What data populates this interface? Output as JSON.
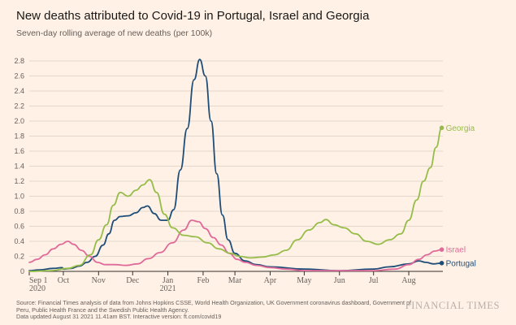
{
  "header": {
    "title": "New deaths attributed to Covid-19 in Portugal, Israel and Georgia",
    "subtitle": "Seven-day rolling average of new deaths (per 100k)"
  },
  "footer": {
    "source_lines": [
      "Source: Financial Times analysis of data from Johns Hopkins CSSE, World Health Organization, UK Government coronavirus dashboard, Government of",
      "Peru, Public Health France and the Swedish Public Health Agency.",
      "Data updated August 31 2021 11.41am BST. Interactive version: ft.com/covid19"
    ],
    "brand": "FINANCIAL TIMES"
  },
  "colors": {
    "background": "#fff1e5",
    "portugal": "#1f4e79",
    "israel": "#e06b9a",
    "georgia": "#96bd4a",
    "grid": "#e3d6ca",
    "axis": "#33302e"
  },
  "chart_data": {
    "type": "line",
    "ylim": [
      0,
      2.8
    ],
    "yticks": [
      "0",
      "0.2",
      "0.4",
      "0.6",
      "0.8",
      "1.0",
      "1.2",
      "1.4",
      "1.6",
      "1.8",
      "2.0",
      "2.2",
      "2.4",
      "2.6",
      "2.8"
    ],
    "xlim": [
      "2020-09-01",
      "2021-08-31"
    ],
    "xticks": [
      {
        "label": "Sep 1",
        "sub": "2020",
        "date": "2020-09-01"
      },
      {
        "label": "Oct",
        "sub": "",
        "date": "2020-10-01"
      },
      {
        "label": "Nov",
        "sub": "",
        "date": "2020-11-01"
      },
      {
        "label": "Dec",
        "sub": "",
        "date": "2020-12-01"
      },
      {
        "label": "Jan",
        "sub": "2021",
        "date": "2021-01-01"
      },
      {
        "label": "Feb",
        "sub": "",
        "date": "2021-02-01"
      },
      {
        "label": "Mar",
        "sub": "",
        "date": "2021-03-01"
      },
      {
        "label": "Apr",
        "sub": "",
        "date": "2021-04-01"
      },
      {
        "label": "May",
        "sub": "",
        "date": "2021-05-01"
      },
      {
        "label": "Jun",
        "sub": "",
        "date": "2021-06-01"
      },
      {
        "label": "Jul",
        "sub": "",
        "date": "2021-07-01"
      },
      {
        "label": "Aug",
        "sub": "",
        "date": "2021-08-01"
      }
    ],
    "grid": true,
    "series": [
      {
        "name": "Portugal",
        "color": "#1f4e79",
        "points": [
          [
            "2020-09-01",
            0.01
          ],
          [
            "2020-09-10",
            0.02
          ],
          [
            "2020-09-22",
            0.04
          ],
          [
            "2020-09-30",
            0.05
          ],
          [
            "2020-10-01",
            0.03
          ],
          [
            "2020-10-08",
            0.04
          ],
          [
            "2020-10-15",
            0.07
          ],
          [
            "2020-10-22",
            0.12
          ],
          [
            "2020-10-29",
            0.2
          ],
          [
            "2020-11-05",
            0.35
          ],
          [
            "2020-11-10",
            0.5
          ],
          [
            "2020-11-15",
            0.68
          ],
          [
            "2020-11-20",
            0.73
          ],
          [
            "2020-11-27",
            0.74
          ],
          [
            "2020-12-04",
            0.78
          ],
          [
            "2020-12-10",
            0.85
          ],
          [
            "2020-12-14",
            0.87
          ],
          [
            "2020-12-20",
            0.77
          ],
          [
            "2020-12-26",
            0.68
          ],
          [
            "2021-01-01",
            0.68
          ],
          [
            "2021-01-06",
            0.82
          ],
          [
            "2021-01-12",
            1.35
          ],
          [
            "2021-01-18",
            1.9
          ],
          [
            "2021-01-24",
            2.55
          ],
          [
            "2021-01-29",
            2.82
          ],
          [
            "2021-02-03",
            2.6
          ],
          [
            "2021-02-08",
            2.0
          ],
          [
            "2021-02-13",
            1.3
          ],
          [
            "2021-02-18",
            0.75
          ],
          [
            "2021-02-23",
            0.42
          ],
          [
            "2021-03-01",
            0.24
          ],
          [
            "2021-03-10",
            0.14
          ],
          [
            "2021-03-20",
            0.09
          ],
          [
            "2021-04-01",
            0.06
          ],
          [
            "2021-05-01",
            0.03
          ],
          [
            "2021-06-01",
            0.01
          ],
          [
            "2021-07-01",
            0.03
          ],
          [
            "2021-07-15",
            0.06
          ],
          [
            "2021-08-01",
            0.1
          ],
          [
            "2021-08-10",
            0.14
          ],
          [
            "2021-08-16",
            0.12
          ],
          [
            "2021-08-23",
            0.1
          ],
          [
            "2021-08-30",
            0.11
          ]
        ]
      },
      {
        "name": "Israel",
        "color": "#e06b9a",
        "points": [
          [
            "2020-09-01",
            0.12
          ],
          [
            "2020-09-08",
            0.16
          ],
          [
            "2020-09-15",
            0.22
          ],
          [
            "2020-09-22",
            0.3
          ],
          [
            "2020-09-29",
            0.36
          ],
          [
            "2020-10-05",
            0.4
          ],
          [
            "2020-10-10",
            0.36
          ],
          [
            "2020-10-17",
            0.28
          ],
          [
            "2020-10-24",
            0.2
          ],
          [
            "2020-10-31",
            0.12
          ],
          [
            "2020-11-07",
            0.09
          ],
          [
            "2020-11-15",
            0.09
          ],
          [
            "2020-11-25",
            0.08
          ],
          [
            "2020-12-05",
            0.1
          ],
          [
            "2020-12-15",
            0.17
          ],
          [
            "2020-12-25",
            0.25
          ],
          [
            "2021-01-05",
            0.38
          ],
          [
            "2021-01-15",
            0.55
          ],
          [
            "2021-01-22",
            0.68
          ],
          [
            "2021-01-28",
            0.66
          ],
          [
            "2021-02-03",
            0.57
          ],
          [
            "2021-02-10",
            0.45
          ],
          [
            "2021-02-17",
            0.35
          ],
          [
            "2021-02-24",
            0.24
          ],
          [
            "2021-03-03",
            0.16
          ],
          [
            "2021-03-10",
            0.12
          ],
          [
            "2021-03-20",
            0.08
          ],
          [
            "2021-04-01",
            0.05
          ],
          [
            "2021-04-15",
            0.03
          ],
          [
            "2021-05-01",
            0.01
          ],
          [
            "2021-06-01",
            0.01
          ],
          [
            "2021-07-01",
            0.01
          ],
          [
            "2021-07-20",
            0.03
          ],
          [
            "2021-08-01",
            0.09
          ],
          [
            "2021-08-10",
            0.16
          ],
          [
            "2021-08-17",
            0.22
          ],
          [
            "2021-08-24",
            0.27
          ],
          [
            "2021-08-30",
            0.29
          ]
        ]
      },
      {
        "name": "Georgia",
        "color": "#96bd4a",
        "points": [
          [
            "2020-09-01",
            0.0
          ],
          [
            "2020-09-20",
            0.01
          ],
          [
            "2020-10-05",
            0.04
          ],
          [
            "2020-10-15",
            0.08
          ],
          [
            "2020-10-25",
            0.22
          ],
          [
            "2020-11-01",
            0.42
          ],
          [
            "2020-11-08",
            0.62
          ],
          [
            "2020-11-14",
            0.88
          ],
          [
            "2020-11-20",
            1.05
          ],
          [
            "2020-11-27",
            1.0
          ],
          [
            "2020-12-04",
            1.08
          ],
          [
            "2020-12-10",
            1.15
          ],
          [
            "2020-12-16",
            1.22
          ],
          [
            "2020-12-22",
            1.05
          ],
          [
            "2020-12-29",
            0.76
          ],
          [
            "2021-01-05",
            0.58
          ],
          [
            "2021-01-15",
            0.48
          ],
          [
            "2021-01-25",
            0.46
          ],
          [
            "2021-02-05",
            0.38
          ],
          [
            "2021-02-15",
            0.3
          ],
          [
            "2021-02-25",
            0.24
          ],
          [
            "2021-03-05",
            0.2
          ],
          [
            "2021-03-15",
            0.18
          ],
          [
            "2021-03-25",
            0.19
          ],
          [
            "2021-04-05",
            0.22
          ],
          [
            "2021-04-15",
            0.28
          ],
          [
            "2021-04-25",
            0.42
          ],
          [
            "2021-05-05",
            0.55
          ],
          [
            "2021-05-15",
            0.65
          ],
          [
            "2021-05-20",
            0.69
          ],
          [
            "2021-05-27",
            0.62
          ],
          [
            "2021-06-05",
            0.58
          ],
          [
            "2021-06-15",
            0.5
          ],
          [
            "2021-06-25",
            0.4
          ],
          [
            "2021-07-05",
            0.36
          ],
          [
            "2021-07-15",
            0.42
          ],
          [
            "2021-07-25",
            0.5
          ],
          [
            "2021-08-01",
            0.68
          ],
          [
            "2021-08-08",
            0.95
          ],
          [
            "2021-08-14",
            1.2
          ],
          [
            "2021-08-20",
            1.38
          ],
          [
            "2021-08-25",
            1.65
          ],
          [
            "2021-08-30",
            1.91
          ]
        ]
      }
    ]
  }
}
